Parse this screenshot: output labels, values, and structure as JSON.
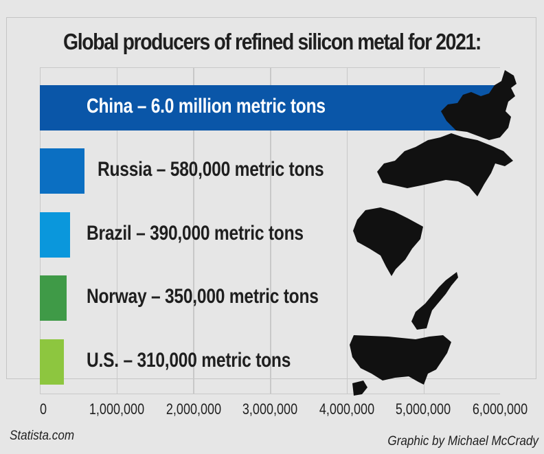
{
  "chart_data": {
    "type": "bar",
    "orientation": "horizontal",
    "title": "Global producers of refined silicon metal for 2021:",
    "categories": [
      "China",
      "Russia",
      "Brazil",
      "Norway",
      "U.S."
    ],
    "values": [
      6000000,
      580000,
      390000,
      350000,
      310000
    ],
    "unit": "metric tons",
    "labels": [
      "China – 6.0 million metric tons",
      "Russia – 580,000 metric tons",
      "Brazil – 390,000 metric tons",
      "Norway – 350,000 metric tons",
      "U.S. – 310,000 metric tons"
    ],
    "colors": [
      "#0a56a8",
      "#0b6fc2",
      "#0a97dc",
      "#3f9a47",
      "#8dc63f"
    ],
    "xlabel": "",
    "ylabel": "",
    "xlim": [
      0,
      6000000
    ],
    "xticks": [
      "0",
      "1,000,000",
      "2,000,000",
      "3,000,000",
      "4,000,000",
      "5,000,000",
      "6,000,000"
    ],
    "grid": true,
    "legend": "none",
    "annotations": [
      "Country silhouettes shown to the right of each bar"
    ]
  },
  "footer": {
    "source": "Statista.com",
    "credit": "Graphic by Michael McCrady"
  }
}
